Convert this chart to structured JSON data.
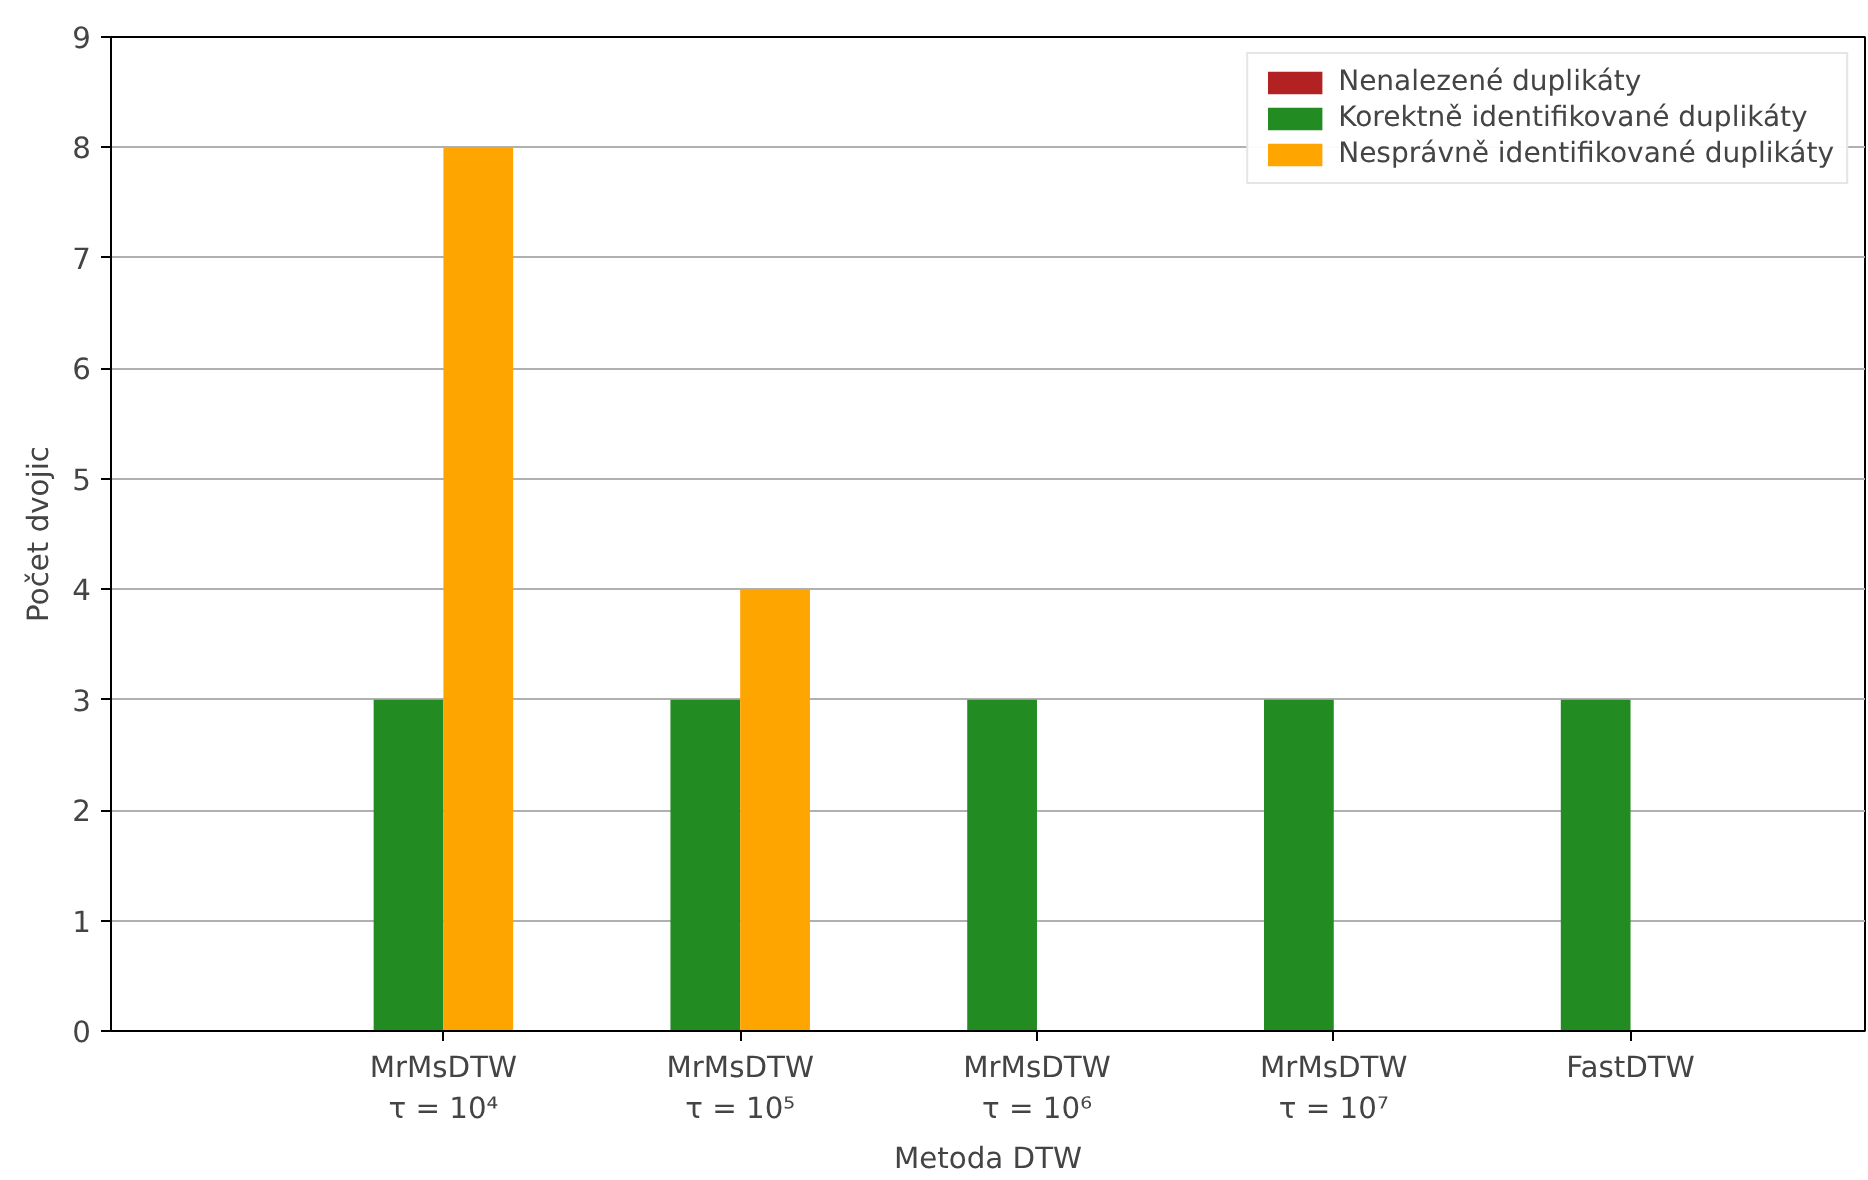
{
  "chart_data": {
    "type": "bar",
    "xlabel": "Metoda DTW",
    "ylabel": "Počet dvojic",
    "categories": [
      "MrMsDTW\nτ = 10⁴",
      "MrMsDTW\nτ = 10⁵",
      "MrMsDTW\nτ = 10⁶",
      "MrMsDTW\nτ = 10⁷",
      "FastDTW"
    ],
    "series": [
      {
        "name": "Nenalezené duplikáty",
        "color": "#b22222",
        "values": [
          0,
          0,
          0,
          0,
          0
        ]
      },
      {
        "name": "Korektně identifikované duplikáty",
        "color": "#228b22",
        "values": [
          3,
          3,
          3,
          3,
          3
        ]
      },
      {
        "name": "Nesprávně identifikované duplikáty",
        "color": "#ffa500",
        "values": [
          8,
          4,
          0,
          0,
          0
        ]
      }
    ],
    "ylim": [
      0,
      9
    ],
    "yticks": [
      0,
      1,
      2,
      3,
      4,
      5,
      6,
      7,
      8,
      9
    ],
    "grid": "y",
    "legend": "top right"
  }
}
